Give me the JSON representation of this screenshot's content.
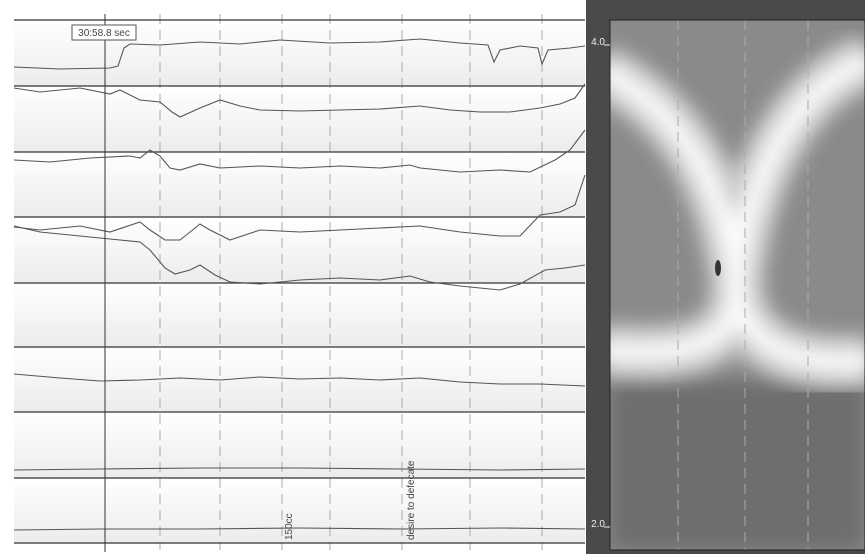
{
  "cursor_label": "30:58.8 sec",
  "annotations": [
    "150cc",
    "desire to defecate"
  ],
  "depth_axis": {
    "ticks": [
      "4.0",
      "2.0"
    ]
  }
}
